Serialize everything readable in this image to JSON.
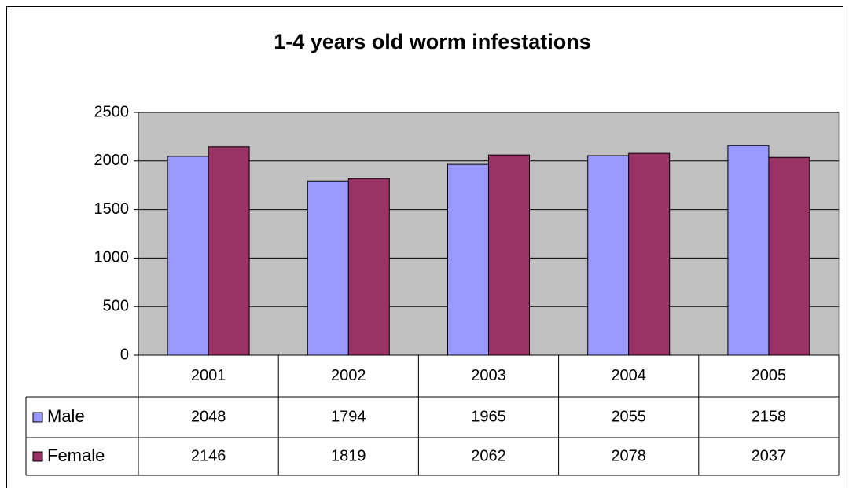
{
  "chart_data": {
    "type": "bar",
    "title": "1-4 years old worm infestations",
    "categories": [
      "2001",
      "2002",
      "2003",
      "2004",
      "2005"
    ],
    "series": [
      {
        "name": "Male",
        "color": "#9999ff",
        "values": [
          2048,
          1794,
          1965,
          2055,
          2158
        ]
      },
      {
        "name": "Female",
        "color": "#993366",
        "values": [
          2146,
          1819,
          2062,
          2078,
          2037
        ]
      }
    ],
    "ylim": [
      0,
      2500
    ],
    "yticks": [
      0,
      500,
      1000,
      1500,
      2000,
      2500
    ],
    "grid": true,
    "plot_background": "#c0c0c0"
  }
}
